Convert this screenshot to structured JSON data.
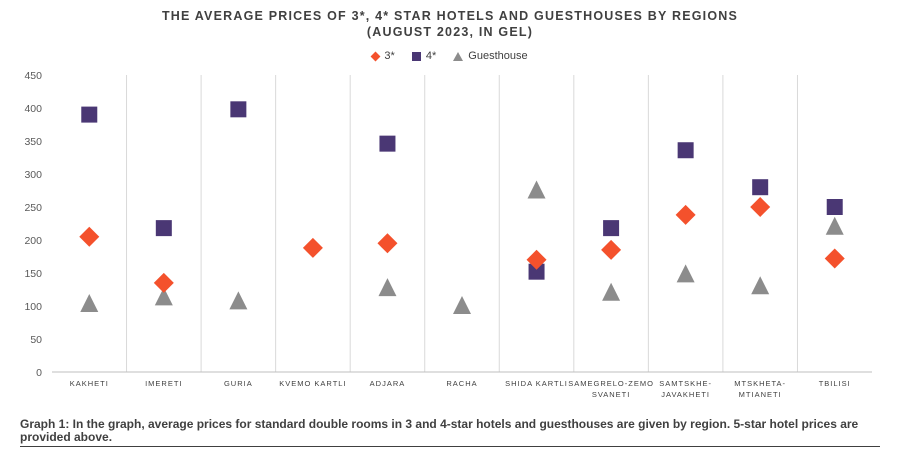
{
  "title_line1": "THE AVERAGE PRICES OF 3*, 4* STAR HOTELS AND GUESTHOUSES BY REGIONS",
  "title_line2": "(AUGUST 2023, IN GEL)",
  "caption": "Graph 1: In the graph, average prices for standard double rooms in 3 and 4-star hotels and guesthouses are given by region. 5-star hotel prices are provided above.",
  "colors": {
    "three_star": "#f4512c",
    "four_star": "#4a3774",
    "guesthouse": "#8c8c8c"
  },
  "chart_data": {
    "type": "scatter",
    "title": "THE AVERAGE PRICES OF 3*, 4* STAR HOTELS AND GUESTHOUSES BY REGIONS (AUGUST 2023, IN GEL)",
    "xlabel": "",
    "ylabel": "",
    "ylim": [
      0,
      450
    ],
    "yticks": [
      0,
      50,
      100,
      150,
      200,
      250,
      300,
      350,
      400,
      450
    ],
    "grid": "vertical separators",
    "legend_position": "top-center",
    "categories": [
      [
        "KAKHETI"
      ],
      [
        "IMERETI"
      ],
      [
        "GURIA"
      ],
      [
        "KVEMO KARTLI"
      ],
      [
        "ADJARA"
      ],
      [
        "RACHA"
      ],
      [
        "SHIDA KARTLI"
      ],
      [
        "SAMEGRELO-ZEMO",
        "SVANETI"
      ],
      [
        "SAMTSKHE-",
        "JAVAKHETI"
      ],
      [
        "MTSKHETA-",
        "MTIANETI"
      ],
      [
        "TBILISI"
      ]
    ],
    "series": [
      {
        "name": "3*",
        "marker": "diamond",
        "values": [
          205,
          135,
          null,
          188,
          195,
          null,
          170,
          185,
          238,
          250,
          172
        ]
      },
      {
        "name": "4*",
        "marker": "square",
        "values": [
          390,
          218,
          398,
          null,
          346,
          null,
          152,
          218,
          336,
          280,
          250
        ]
      },
      {
        "name": "Guesthouse",
        "marker": "triangle",
        "values": [
          103,
          113,
          107,
          null,
          127,
          100,
          275,
          120,
          148,
          130,
          220
        ]
      }
    ]
  }
}
